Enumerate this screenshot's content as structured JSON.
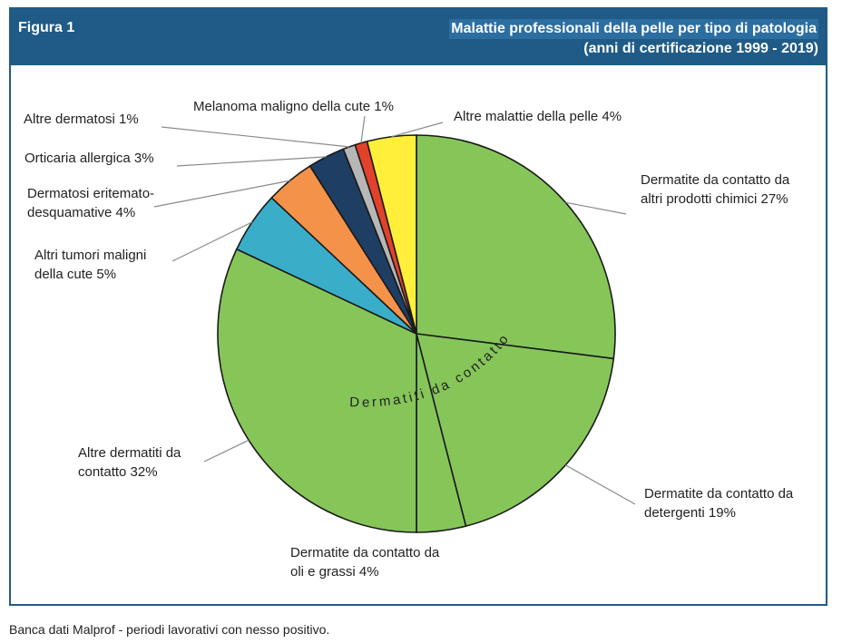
{
  "figure_label": "Figura 1",
  "title_line1": "Malattie professionali della pelle per tipo di patologia",
  "title_line2": "(anni di certificazione 1999 - 2019)",
  "source": "Banca dati Malprof - periodi lavorativi con nesso positivo.",
  "group_label": "Dermatiti da contatto",
  "chart_data": {
    "type": "pie",
    "title": "Malattie professionali della pelle per tipo di patologia",
    "subtitle": "(anni di certificazione 1999 - 2019)",
    "unit": "%",
    "slices": [
      {
        "label_lines": [
          "Dermatite da contatto da",
          "altri prodotti chimici 27%"
        ],
        "value": 27,
        "color": "#86c659"
      },
      {
        "label_lines": [
          "Dermatite da contatto da",
          "detergenti 19%"
        ],
        "value": 19,
        "color": "#86c659"
      },
      {
        "label_lines": [
          "Dermatite da contatto da",
          "oli e grassi 4%"
        ],
        "value": 4,
        "color": "#86c659"
      },
      {
        "label_lines": [
          "Altre dermatiti da",
          "contatto 32%"
        ],
        "value": 32,
        "color": "#86c659"
      },
      {
        "label_lines": [
          "Altri tumori maligni",
          "della cute 5%"
        ],
        "value": 5,
        "color": "#3aaec8"
      },
      {
        "label_lines": [
          "Dermatosi eritemato-",
          "desquamative 4%"
        ],
        "value": 4,
        "color": "#f4924a"
      },
      {
        "label_lines": [
          "Orticaria allergica 3%"
        ],
        "value": 3,
        "color": "#1f3e63"
      },
      {
        "label_lines": [
          "Altre dermatosi 1%"
        ],
        "value": 1,
        "color": "#b7b7b7"
      },
      {
        "label_lines": [
          "Melanoma maligno della cute 1%"
        ],
        "value": 1,
        "color": "#e2412b"
      },
      {
        "label_lines": [
          "Altre malattie della pelle 4%"
        ],
        "value": 4,
        "color": "#ffef3a"
      }
    ]
  }
}
